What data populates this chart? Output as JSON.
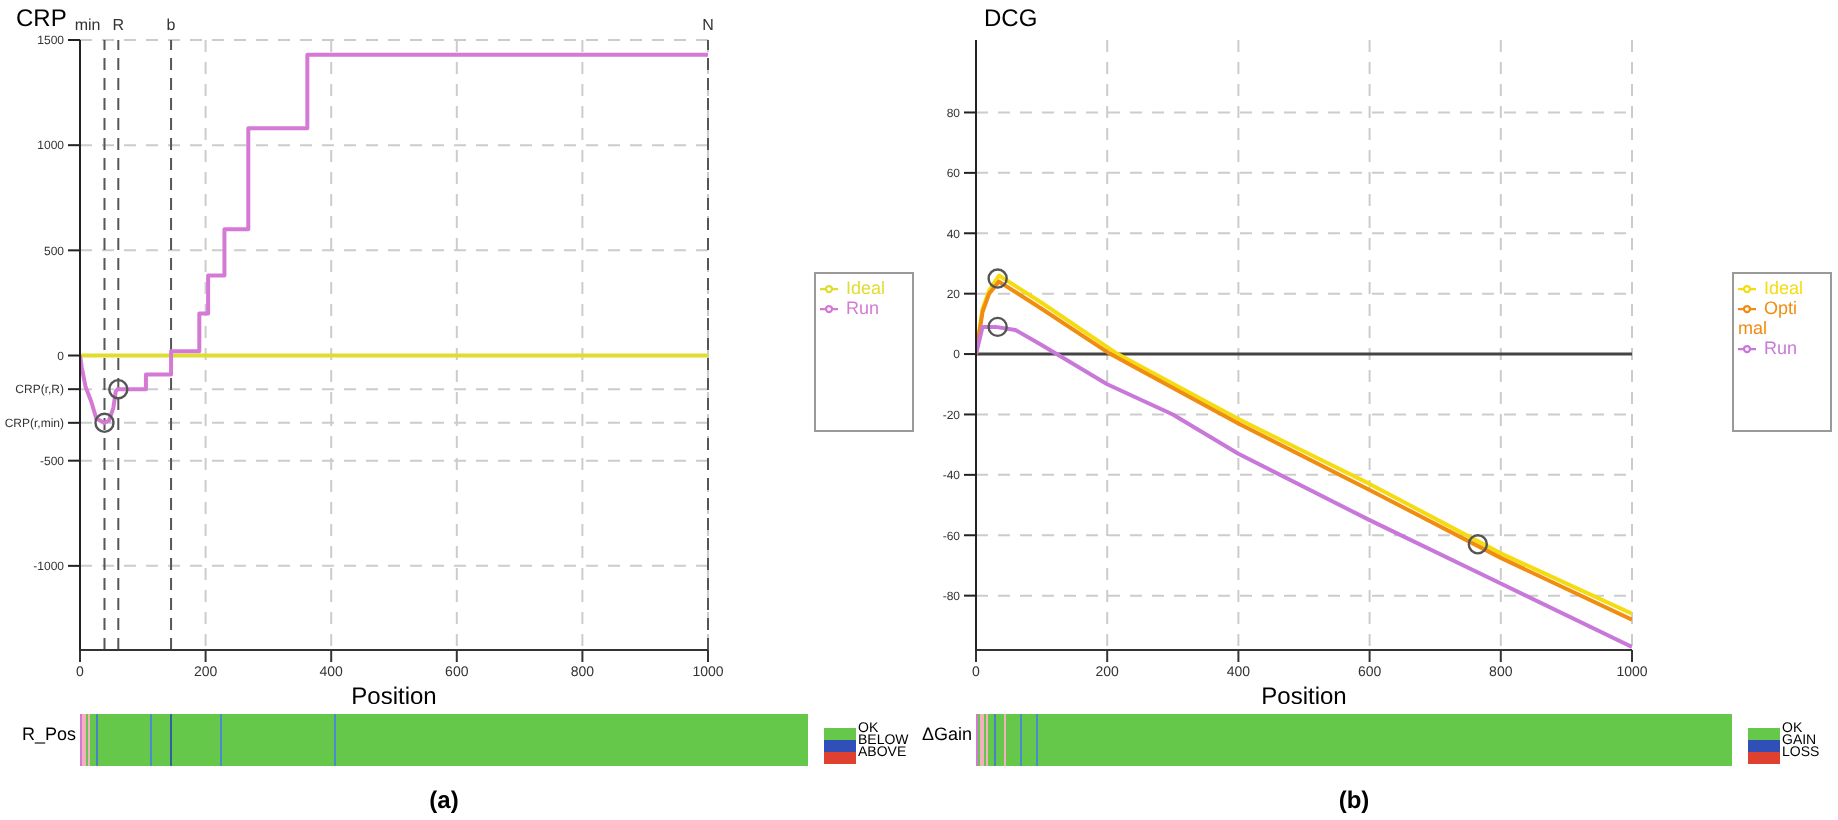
{
  "chart_data": [
    {
      "type": "line",
      "ylabel": "CRP",
      "xlabel": "Position",
      "xlim": [
        0,
        1000
      ],
      "ylim": [
        -1400,
        1500
      ],
      "xticks": [
        0,
        200,
        400,
        600,
        800,
        1000
      ],
      "yticks": [
        -1000,
        -500,
        {
          "value": -320,
          "label": "CRP(r,min)"
        },
        {
          "value": -160,
          "label": "CRP(r,R)"
        },
        0,
        500,
        1000,
        1500
      ],
      "grid": true,
      "legend": "right",
      "line_style": "solid",
      "ref_lines": [
        {
          "axis": "x",
          "value": 39,
          "label": "min",
          "line_style": "dashed"
        },
        {
          "axis": "x",
          "value": 61,
          "label": "R",
          "line_style": "dashed"
        },
        {
          "axis": "x",
          "value": 145,
          "label": "b",
          "line_style": "dashed"
        },
        {
          "axis": "x",
          "value": 1000,
          "label": "N",
          "line_style": "dashed"
        }
      ],
      "series": [
        {
          "name": "Ideal",
          "color": "#e0dc30",
          "x": [
            0,
            1000
          ],
          "values": [
            0,
            0
          ]
        },
        {
          "name": "Run",
          "color": "#d47ad4",
          "x": [
            0,
            3,
            9,
            18,
            26,
            38,
            46,
            53,
            57,
            60,
            105,
            105,
            145,
            145,
            190,
            190,
            204,
            204,
            230,
            230,
            268,
            268,
            362,
            362,
            1000
          ],
          "values": [
            0,
            -60,
            -150,
            -220,
            -300,
            -320,
            -310,
            -250,
            -170,
            -160,
            -160,
            -90,
            -90,
            20,
            20,
            200,
            200,
            380,
            380,
            600,
            600,
            1080,
            1080,
            1430,
            1430
          ]
        },
        {
          "type": "scatter",
          "marker": "circle",
          "color": "#555555",
          "x": [
            39,
            61
          ],
          "values": [
            -320,
            -160
          ]
        }
      ],
      "annotations": [
        "R_Pos",
        "OK",
        "BELOW",
        "ABOVE",
        "(a)"
      ]
    },
    {
      "type": "line",
      "ylabel": "DCG",
      "xlabel": "Position",
      "xlim": [
        0,
        1000
      ],
      "ylim": [
        -98,
        104
      ],
      "xticks": [
        0,
        200,
        400,
        600,
        800,
        1000
      ],
      "yticks": [
        -80,
        -60,
        -40,
        -20,
        0,
        20,
        40,
        60,
        80
      ],
      "grid": true,
      "legend": "right",
      "line_style": "solid",
      "series": [
        {
          "name": "Ideal",
          "color": "#f5dc10",
          "x": [
            0,
            10,
            20,
            35,
            100,
            216,
            400,
            600,
            800,
            1000
          ],
          "values": [
            0,
            15,
            21,
            26,
            17,
            0,
            -21.5,
            -43,
            -66,
            -86
          ]
        },
        {
          "name": "Optimal",
          "color": "#f08c10",
          "x": [
            0,
            10,
            20,
            35,
            100,
            205,
            400,
            600,
            800,
            1000
          ],
          "values": [
            0,
            14,
            20,
            24,
            15,
            0,
            -23,
            -45,
            -67.5,
            -88
          ]
        },
        {
          "name": "Run",
          "color": "#c878d8",
          "x": [
            0,
            10,
            30,
            60,
            100,
            200,
            300,
            400,
            600,
            800,
            1000
          ],
          "values": [
            0,
            9,
            9,
            8,
            3,
            -10,
            -20,
            -33,
            -55,
            -76,
            -97
          ]
        },
        {
          "type": "scatter",
          "marker": "circle",
          "color": "#555555",
          "x": [
            33,
            33,
            765
          ],
          "values": [
            25,
            9,
            -63
          ]
        }
      ],
      "annotations": [
        "ΔGain",
        "OK",
        "GAIN",
        "LOSS",
        "(b)"
      ]
    }
  ]
}
